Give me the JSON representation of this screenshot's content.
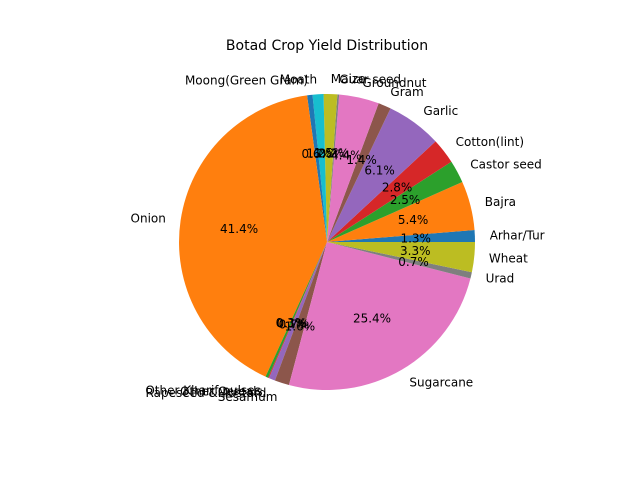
{
  "chart_data": {
    "type": "pie",
    "title": "Botad Crop Yield Distribution",
    "start_angle_deg": 0,
    "direction": "counterclockwise",
    "legend": "none",
    "slices": [
      {
        "label": "Arhar/Tur",
        "value": 1.3,
        "pct_label": "1.3%",
        "color": "#1f77b4"
      },
      {
        "label": "Bajra",
        "value": 5.4,
        "pct_label": "5.4%",
        "color": "#ff7f0e"
      },
      {
        "label": "Castor seed",
        "value": 2.5,
        "pct_label": "2.5%",
        "color": "#2ca02c"
      },
      {
        "label": "Cotton(lint)",
        "value": 2.8,
        "pct_label": "2.8%",
        "color": "#d62728"
      },
      {
        "label": "Garlic",
        "value": 6.1,
        "pct_label": "6.1%",
        "color": "#9467bd"
      },
      {
        "label": "Gram",
        "value": 1.4,
        "pct_label": "1.4%",
        "color": "#8c564b"
      },
      {
        "label": "Groundnut",
        "value": 4.4,
        "pct_label": "4.4%",
        "color": "#e377c2"
      },
      {
        "label": "Guar seed",
        "value": 0.2,
        "pct_label": "0.2%",
        "color": "#7f7f7f"
      },
      {
        "label": "Maize",
        "value": 1.5,
        "pct_label": "1.5%",
        "color": "#bcbd22"
      },
      {
        "label": "Moath",
        "value": 1.2,
        "pct_label": "1.2%",
        "color": "#17becf"
      },
      {
        "label": "Moong(Green Gram)",
        "value": 0.6,
        "pct_label": "0.6%",
        "color": "#1f77b4"
      },
      {
        "label": "Onion",
        "value": 41.4,
        "pct_label": "41.4%",
        "color": "#ff7f0e"
      },
      {
        "label": "Other Kharif pulses",
        "value": 0.3,
        "pct_label": "0.3%",
        "color": "#2ca02c"
      },
      {
        "label": "Other Cereals",
        "value": 0.1,
        "pct_label": "0.1%",
        "color": "#d62728"
      },
      {
        "label": "Rapeseed &Mustard",
        "value": 0.7,
        "pct_label": "0.7%",
        "color": "#9467bd"
      },
      {
        "label": "Sesamum",
        "value": 1.6,
        "pct_label": "1.6%",
        "color": "#8c564b"
      },
      {
        "label": "Sugarcane",
        "value": 25.4,
        "pct_label": "25.4%",
        "color": "#e377c2"
      },
      {
        "label": "Urad",
        "value": 0.7,
        "pct_label": "0.7%",
        "color": "#7f7f7f"
      },
      {
        "label": "Wheat",
        "value": 3.3,
        "pct_label": "3.3%",
        "color": "#bcbd22"
      }
    ]
  }
}
